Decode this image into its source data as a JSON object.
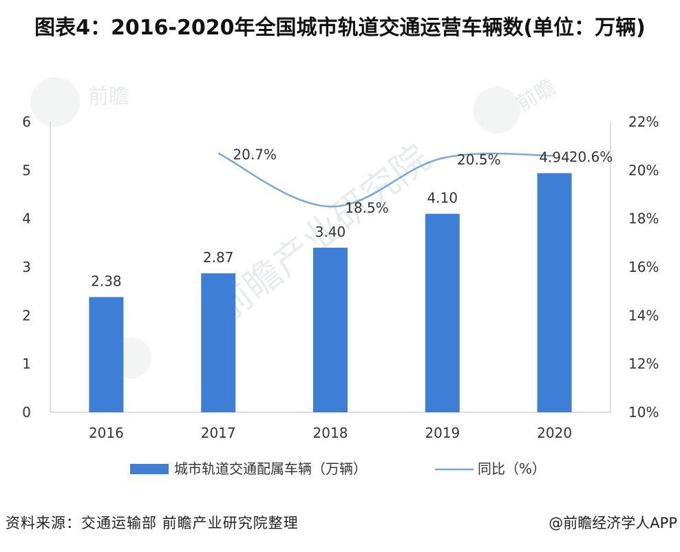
{
  "chart_data": {
    "type": "bar+line",
    "title": "图表4：2016-2020年全国城市轨道交通运营车辆数(单位：万辆)",
    "categories": [
      "2016",
      "2017",
      "2018",
      "2019",
      "2020"
    ],
    "series": [
      {
        "name": "城市轨道交通配属车辆（万辆）",
        "type": "bar",
        "axis": "left",
        "values": [
          2.38,
          2.87,
          3.4,
          4.1,
          4.94
        ],
        "labels": [
          "2.38",
          "2.87",
          "3.40",
          "4.10",
          "4.94"
        ],
        "color": "#3d7fd6"
      },
      {
        "name": "同比（%）",
        "type": "line",
        "axis": "right",
        "values": [
          null,
          20.7,
          18.5,
          20.5,
          20.6
        ],
        "labels": [
          "",
          "20.7%",
          "18.5%",
          "20.5%",
          "20.6%"
        ],
        "color": "#7aa6dc"
      }
    ],
    "y_left": {
      "min": 0,
      "max": 6,
      "ticks": [
        "0",
        "1",
        "2",
        "3",
        "4",
        "5",
        "6"
      ]
    },
    "y_right": {
      "min": 10,
      "max": 22,
      "ticks": [
        "10%",
        "12%",
        "14%",
        "16%",
        "18%",
        "20%",
        "22%"
      ]
    },
    "legend_position": "bottom"
  },
  "footer": {
    "source": "资料来源：交通运输部 前瞻产业研究院整理",
    "credit": "@前瞻经济学人APP"
  },
  "watermark": {
    "brand": "前瞻产业研究院",
    "brand_short": "前瞻"
  }
}
